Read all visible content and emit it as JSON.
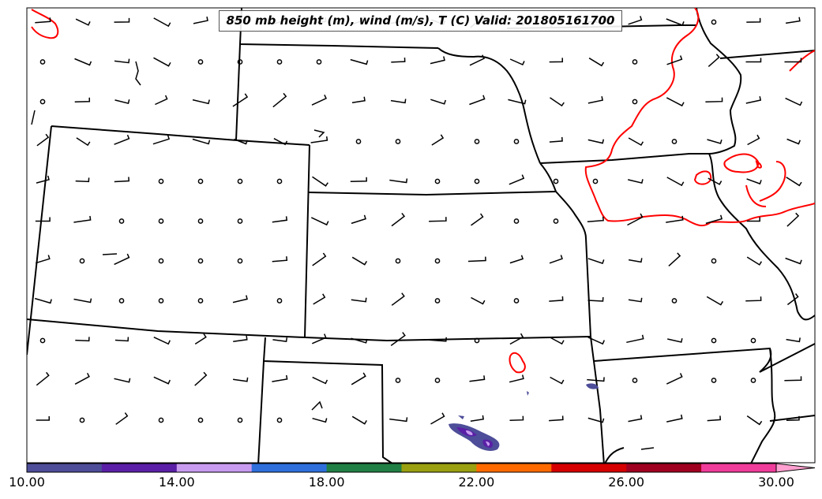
{
  "title": "850 mb height (m), wind (m/s), T (C) Valid: 201805161700",
  "colorbar": {
    "ticks": [
      "10.00",
      "14.00",
      "18.00",
      "22.00",
      "26.00",
      "30.00"
    ],
    "tick_values": [
      10,
      14,
      18,
      22,
      26,
      30
    ],
    "range": [
      10,
      31
    ],
    "bin_width": 2,
    "colors": [
      "#4d4d99",
      "#5a1fa6",
      "#c89bf0",
      "#2e6fdc",
      "#207f45",
      "#9aa010",
      "#ff6a00",
      "#d60000",
      "#a00020",
      "#f03c9a",
      "#ffa0d0"
    ]
  },
  "colors": {
    "boundaries": "#000000",
    "temperature_contour": "#ff0000",
    "barbs": "#000000"
  },
  "legend_symbols": {
    "calm": "circle-icon",
    "wind": "wind-barb-icon"
  }
}
